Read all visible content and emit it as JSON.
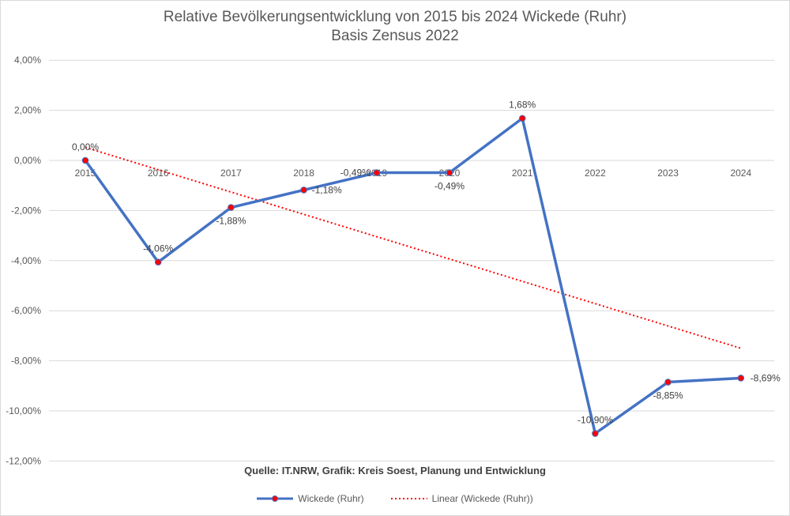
{
  "chart": {
    "title_line1": "Relative Bevölkerungsentwicklung von 2015 bis 2024 Wickede (Ruhr)",
    "title_line2": "Basis Zensus 2022",
    "source": "Quelle: IT.NRW, Grafik: Kreis Soest, Planung und Entwicklung",
    "legend": {
      "series_label": "Wickede (Ruhr)",
      "trend_label": "Linear (Wickede (Ruhr))"
    },
    "y_ticks": [
      "4,00%",
      "2,00%",
      "0,00%",
      "-2,00%",
      "-4,00%",
      "-6,00%",
      "-8,00%",
      "-10,00%",
      "-12,00%"
    ],
    "x_ticks": [
      "2015",
      "2016",
      "2017",
      "2018",
      "2019",
      "2020",
      "2021",
      "2022",
      "2023",
      "2024"
    ],
    "data_labels": [
      "0,00%",
      "-4,06%",
      "-1,88%",
      "-1,18%",
      "-0,49%",
      "-0,49%",
      "1,68%",
      "-10,90%",
      "-8,85%",
      "-8,69%"
    ],
    "colors": {
      "line": "#4472c4",
      "marker": "#ff0000",
      "trend": "#ff0000",
      "grid": "#d9d9d9"
    }
  },
  "chart_data": {
    "type": "line",
    "title": "Relative Bevölkerungsentwicklung von 2015 bis 2024 Wickede (Ruhr) — Basis Zensus 2022",
    "xlabel": "",
    "ylabel": "",
    "categories": [
      "2015",
      "2016",
      "2017",
      "2018",
      "2019",
      "2020",
      "2021",
      "2022",
      "2023",
      "2024"
    ],
    "series": [
      {
        "name": "Wickede (Ruhr)",
        "values": [
          0.0,
          -4.06,
          -1.88,
          -1.18,
          -0.49,
          -0.49,
          1.68,
          -10.9,
          -8.85,
          -8.69
        ]
      },
      {
        "name": "Linear (Wickede (Ruhr))",
        "type": "trendline",
        "values": [
          0.52,
          -0.37,
          -1.26,
          -2.15,
          -3.05,
          -3.94,
          -4.83,
          -5.72,
          -6.61,
          -7.5
        ]
      }
    ],
    "ylim": [
      -12,
      4
    ],
    "y_unit": "%",
    "grid": true,
    "legend_position": "bottom",
    "annotation": "Quelle: IT.NRW, Grafik: Kreis Soest, Planung und Entwicklung"
  }
}
